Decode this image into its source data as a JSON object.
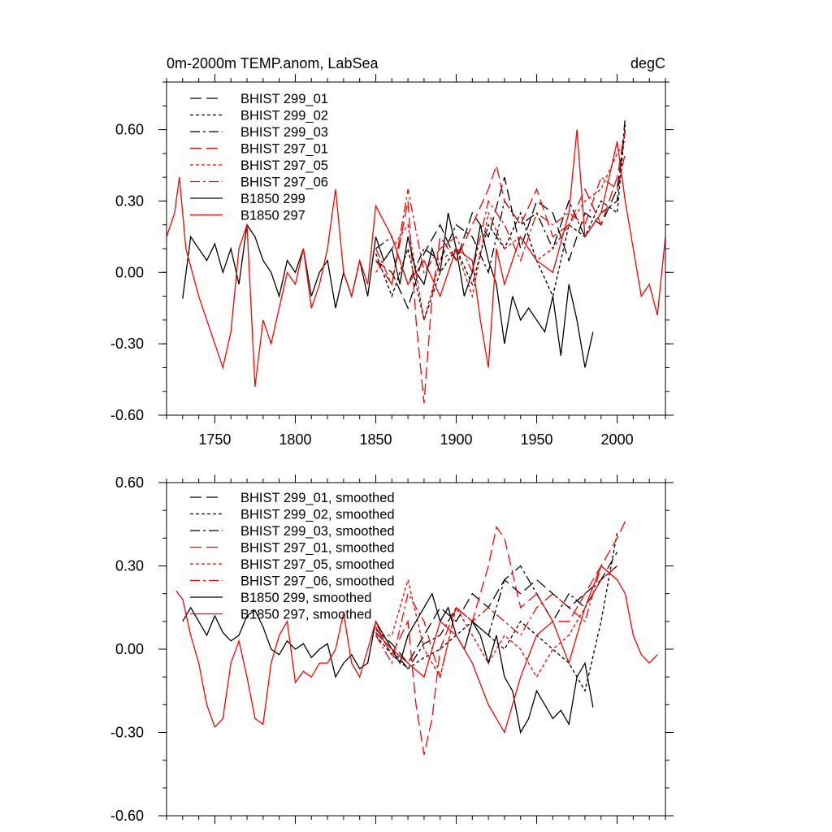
{
  "chart_data": [
    {
      "type": "line",
      "title_left": "0m-2000m TEMP.anom, LabSea",
      "title_right": "degC",
      "xlim": [
        1720,
        2030
      ],
      "ylim": [
        -0.6,
        0.8
      ],
      "x_ticks": [
        1750,
        1800,
        1850,
        1900,
        1950,
        2000
      ],
      "x_tick_labels": [
        "1750",
        "1800",
        "1850",
        "1900",
        "1950",
        "2000"
      ],
      "y_ticks": [
        -0.6,
        -0.3,
        0.0,
        0.3,
        0.6
      ],
      "y_tick_labels": [
        "-0.60",
        "-0.30",
        "0.00",
        "0.30",
        "0.60"
      ],
      "legend_position": "top-left",
      "series": [
        {
          "name": "BHIST 299_01",
          "color": "#000000",
          "dash": "long-dash",
          "x": [
            1850,
            1860,
            1870,
            1880,
            1890,
            1900,
            1910,
            1920,
            1930,
            1940,
            1950,
            1960,
            1970,
            1980,
            1990,
            2000,
            2005
          ],
          "y": [
            0.05,
            0.0,
            -0.15,
            0.08,
            0.2,
            0.05,
            0.25,
            0.15,
            0.4,
            0.1,
            0.3,
            0.25,
            0.05,
            0.25,
            0.2,
            0.35,
            0.6
          ]
        },
        {
          "name": "BHIST 299_02",
          "color": "#000000",
          "dash": "short-dash",
          "x": [
            1850,
            1860,
            1870,
            1880,
            1890,
            1900,
            1910,
            1920,
            1930,
            1940,
            1950,
            1960,
            1970,
            1980,
            1990,
            2000,
            2005
          ],
          "y": [
            0.08,
            -0.1,
            0.1,
            -0.2,
            0.0,
            0.1,
            -0.05,
            0.2,
            0.1,
            0.25,
            0.05,
            -0.1,
            0.2,
            0.15,
            0.3,
            0.25,
            0.62
          ]
        },
        {
          "name": "BHIST 299_03",
          "color": "#000000",
          "dash": "dash-dot",
          "x": [
            1850,
            1860,
            1870,
            1880,
            1890,
            1900,
            1910,
            1920,
            1930,
            1940,
            1950,
            1960,
            1970,
            1980,
            1990,
            2000,
            2005
          ],
          "y": [
            0.1,
            0.15,
            -0.05,
            0.1,
            0.05,
            0.2,
            0.15,
            0.0,
            0.3,
            0.2,
            0.25,
            0.1,
            0.3,
            0.15,
            0.25,
            0.3,
            0.65
          ]
        },
        {
          "name": "BHIST 297_01",
          "color": "#ff0000",
          "dash": "long-dash",
          "x": [
            1850,
            1860,
            1870,
            1875,
            1880,
            1885,
            1890,
            1900,
            1910,
            1920,
            1925,
            1930,
            1940,
            1950,
            1960,
            1970,
            1980,
            1990,
            2000,
            2005
          ],
          "y": [
            0.05,
            -0.05,
            0.3,
            -0.2,
            -0.55,
            -0.1,
            0.15,
            0.05,
            0.2,
            0.35,
            0.45,
            0.3,
            0.2,
            0.35,
            0.15,
            0.2,
            0.35,
            0.2,
            0.4,
            0.6
          ]
        },
        {
          "name": "BHIST 297_05",
          "color": "#ff0000",
          "dash": "short-dash",
          "x": [
            1850,
            1860,
            1870,
            1880,
            1890,
            1900,
            1910,
            1920,
            1930,
            1940,
            1950,
            1960,
            1970,
            1980,
            1990,
            2000,
            2005
          ],
          "y": [
            0.0,
            0.1,
            0.2,
            -0.2,
            0.05,
            0.1,
            -0.1,
            0.25,
            0.1,
            0.15,
            0.05,
            0.1,
            0.2,
            0.3,
            0.35,
            0.5,
            0.55
          ]
        },
        {
          "name": "BHIST 297_06",
          "color": "#ff0000",
          "dash": "dash-dot",
          "x": [
            1850,
            1860,
            1870,
            1880,
            1890,
            1900,
            1910,
            1920,
            1930,
            1940,
            1950,
            1960,
            1970,
            1980,
            1990,
            2000,
            2005
          ],
          "y": [
            0.1,
            -0.05,
            0.35,
            0.0,
            0.1,
            0.15,
            0.0,
            0.3,
            0.2,
            0.05,
            0.25,
            0.2,
            0.25,
            0.2,
            0.4,
            0.35,
            0.5
          ]
        },
        {
          "name": "B1850 299",
          "color": "#000000",
          "dash": "solid",
          "x": [
            1730,
            1735,
            1740,
            1745,
            1750,
            1755,
            1760,
            1765,
            1770,
            1775,
            1780,
            1785,
            1790,
            1795,
            1800,
            1805,
            1810,
            1815,
            1820,
            1825,
            1830,
            1835,
            1840,
            1845,
            1850,
            1855,
            1860,
            1865,
            1870,
            1875,
            1880,
            1885,
            1890,
            1895,
            1900,
            1905,
            1910,
            1915,
            1920,
            1925,
            1930,
            1935,
            1940,
            1945,
            1950,
            1955,
            1960,
            1965,
            1970,
            1975,
            1980,
            1985
          ],
          "y": [
            -0.11,
            0.15,
            0.1,
            0.05,
            0.12,
            0.0,
            0.1,
            -0.05,
            0.2,
            0.15,
            0.05,
            0.0,
            -0.1,
            0.05,
            0.0,
            0.1,
            -0.1,
            0.0,
            0.05,
            -0.15,
            0.0,
            -0.1,
            0.05,
            -0.1,
            0.15,
            0.05,
            0.1,
            -0.05,
            0.15,
            0.0,
            -0.05,
            0.1,
            0.0,
            0.25,
            0.1,
            -0.1,
            0.0,
            0.2,
            0.05,
            -0.05,
            -0.3,
            -0.1,
            -0.2,
            -0.15,
            -0.2,
            -0.25,
            -0.1,
            -0.35,
            -0.05,
            -0.2,
            -0.4,
            -0.25
          ]
        },
        {
          "name": "B1850 297",
          "color": "#ff0000",
          "dash": "solid",
          "x": [
            1720,
            1725,
            1728,
            1732,
            1736,
            1740,
            1745,
            1750,
            1755,
            1760,
            1765,
            1770,
            1775,
            1780,
            1785,
            1790,
            1795,
            1800,
            1805,
            1810,
            1815,
            1820,
            1825,
            1830,
            1835,
            1840,
            1845,
            1850,
            1860,
            1870,
            1880,
            1890,
            1900,
            1910,
            1915,
            1920,
            1925,
            1930,
            1940,
            1950,
            1960,
            1970,
            1975,
            1980,
            1990,
            2000,
            2005,
            2010,
            2015,
            2020,
            2025,
            2030
          ],
          "y": [
            0.15,
            0.25,
            0.4,
            0.1,
            0.0,
            -0.1,
            -0.2,
            -0.3,
            -0.4,
            -0.25,
            0.1,
            0.2,
            -0.48,
            -0.2,
            -0.3,
            -0.15,
            0.0,
            -0.05,
            0.1,
            -0.15,
            -0.05,
            0.1,
            0.35,
            0.0,
            -0.1,
            0.05,
            -0.05,
            0.28,
            0.15,
            -0.05,
            0.05,
            -0.1,
            0.1,
            0.05,
            -0.2,
            -0.4,
            0.1,
            -0.05,
            0.15,
            0.05,
            0.0,
            0.25,
            0.6,
            0.15,
            0.25,
            0.55,
            0.3,
            0.1,
            -0.1,
            -0.05,
            -0.18,
            0.15
          ]
        }
      ]
    },
    {
      "type": "line",
      "xlim": [
        1720,
        2030
      ],
      "ylim": [
        -0.6,
        0.6
      ],
      "x_ticks": [
        1750,
        1800,
        1850,
        1900,
        1950,
        2000
      ],
      "y_ticks": [
        -0.6,
        -0.3,
        0.0,
        0.3,
        0.6
      ],
      "y_tick_labels": [
        "-0.60",
        "-0.30",
        "0.00",
        "0.30",
        "0.60"
      ],
      "legend_position": "top-left",
      "series": [
        {
          "name": "BHIST 299_01, smoothed",
          "color": "#000000",
          "dash": "long-dash",
          "x": [
            1850,
            1860,
            1870,
            1880,
            1890,
            1900,
            1910,
            1920,
            1930,
            1940,
            1950,
            1960,
            1970,
            1980,
            1990,
            2000
          ],
          "y": [
            0.07,
            0.02,
            -0.05,
            0.05,
            0.15,
            0.1,
            0.2,
            0.15,
            0.25,
            0.2,
            0.25,
            0.2,
            0.15,
            0.2,
            0.25,
            0.35
          ]
        },
        {
          "name": "BHIST 299_02, smoothed",
          "color": "#000000",
          "dash": "short-dash",
          "x": [
            1850,
            1860,
            1870,
            1880,
            1890,
            1900,
            1910,
            1920,
            1930,
            1940,
            1950,
            1960,
            1970,
            1980,
            1990,
            2000
          ],
          "y": [
            0.05,
            -0.02,
            -0.07,
            -0.03,
            0.0,
            0.05,
            0.1,
            0.05,
            0.0,
            0.1,
            0.05,
            0.0,
            -0.05,
            -0.15,
            0.1,
            0.42
          ]
        },
        {
          "name": "BHIST 299_03, smoothed",
          "color": "#000000",
          "dash": "dash-dot",
          "x": [
            1850,
            1860,
            1870,
            1880,
            1890,
            1900,
            1910,
            1920,
            1930,
            1940,
            1950,
            1960,
            1970,
            1980,
            1990,
            2000
          ],
          "y": [
            0.06,
            0.0,
            -0.07,
            0.02,
            0.05,
            0.15,
            0.1,
            0.05,
            0.25,
            0.3,
            0.2,
            0.1,
            0.2,
            0.15,
            0.25,
            0.3
          ]
        },
        {
          "name": "BHIST 297_01, smoothed",
          "color": "#ff0000",
          "dash": "long-dash",
          "x": [
            1850,
            1860,
            1870,
            1875,
            1880,
            1885,
            1890,
            1900,
            1910,
            1920,
            1925,
            1930,
            1940,
            1950,
            1960,
            1970,
            1980,
            1990,
            2000,
            2005
          ],
          "y": [
            0.08,
            -0.02,
            0.1,
            -0.2,
            -0.38,
            -0.25,
            0.0,
            0.15,
            0.1,
            0.3,
            0.44,
            0.4,
            0.15,
            0.2,
            0.1,
            0.1,
            0.2,
            0.3,
            0.4,
            0.46
          ]
        },
        {
          "name": "BHIST 297_05, smoothed",
          "color": "#ff0000",
          "dash": "short-dash",
          "x": [
            1850,
            1860,
            1870,
            1880,
            1890,
            1900,
            1910,
            1920,
            1930,
            1940,
            1950,
            1960,
            1970,
            1980,
            1990,
            2000
          ],
          "y": [
            0.05,
            0.05,
            0.25,
            0.0,
            -0.1,
            0.15,
            0.05,
            -0.05,
            0.05,
            0.0,
            -0.1,
            0.0,
            0.05,
            0.15,
            0.25,
            0.3
          ]
        },
        {
          "name": "BHIST 297_06, smoothed",
          "color": "#ff0000",
          "dash": "dash-dot",
          "x": [
            1850,
            1860,
            1870,
            1880,
            1890,
            1900,
            1910,
            1920,
            1930,
            1940,
            1950,
            1960,
            1970,
            1980,
            1990,
            2000
          ],
          "y": [
            0.05,
            -0.05,
            0.2,
            0.1,
            -0.1,
            0.15,
            0.1,
            0.15,
            0.1,
            0.05,
            0.15,
            0.2,
            0.15,
            0.1,
            0.3,
            0.25
          ]
        },
        {
          "name": "B1850 299, smoothed",
          "color": "#000000",
          "dash": "solid",
          "x": [
            1730,
            1735,
            1740,
            1745,
            1750,
            1755,
            1760,
            1765,
            1770,
            1775,
            1780,
            1785,
            1790,
            1795,
            1800,
            1805,
            1810,
            1815,
            1820,
            1825,
            1830,
            1835,
            1840,
            1845,
            1850,
            1855,
            1860,
            1865,
            1870,
            1875,
            1880,
            1885,
            1890,
            1895,
            1900,
            1905,
            1910,
            1915,
            1920,
            1925,
            1930,
            1935,
            1940,
            1945,
            1950,
            1955,
            1960,
            1965,
            1970,
            1975,
            1980,
            1985
          ],
          "y": [
            0.1,
            0.15,
            0.1,
            0.05,
            0.12,
            0.06,
            0.03,
            0.05,
            0.12,
            0.14,
            0.08,
            0.0,
            -0.02,
            0.03,
            0.0,
            0.02,
            -0.03,
            0.0,
            0.02,
            -0.1,
            -0.05,
            -0.02,
            -0.07,
            -0.05,
            0.1,
            0.05,
            0.0,
            -0.05,
            0.05,
            0.1,
            0.15,
            0.2,
            0.1,
            0.15,
            0.05,
            0.0,
            0.1,
            0.05,
            -0.05,
            0.05,
            -0.1,
            -0.15,
            -0.3,
            -0.25,
            -0.15,
            -0.2,
            -0.25,
            -0.22,
            -0.27,
            -0.1,
            -0.05,
            -0.21
          ]
        },
        {
          "name": "B1850 297, smoothed",
          "color": "#ff0000",
          "dash": "solid",
          "x": [
            1726,
            1730,
            1735,
            1740,
            1745,
            1750,
            1755,
            1760,
            1765,
            1770,
            1775,
            1780,
            1785,
            1790,
            1795,
            1800,
            1805,
            1810,
            1815,
            1820,
            1825,
            1830,
            1835,
            1840,
            1845,
            1850,
            1855,
            1860,
            1870,
            1880,
            1890,
            1900,
            1910,
            1920,
            1930,
            1940,
            1950,
            1960,
            1970,
            1980,
            1990,
            2000,
            2005,
            2010,
            2015,
            2020,
            2025
          ],
          "y": [
            0.21,
            0.18,
            0.05,
            -0.05,
            -0.2,
            -0.28,
            -0.25,
            -0.05,
            0.03,
            -0.1,
            -0.25,
            -0.27,
            -0.05,
            0.05,
            0.1,
            -0.12,
            -0.08,
            -0.1,
            -0.05,
            -0.05,
            0.0,
            0.13,
            -0.05,
            -0.1,
            0.0,
            0.1,
            0.03,
            0.0,
            -0.05,
            -0.1,
            0.1,
            0.05,
            -0.05,
            -0.2,
            -0.3,
            -0.1,
            0.05,
            0.1,
            -0.05,
            0.15,
            0.3,
            0.25,
            0.2,
            0.05,
            -0.02,
            -0.05,
            -0.02
          ]
        }
      ]
    }
  ]
}
